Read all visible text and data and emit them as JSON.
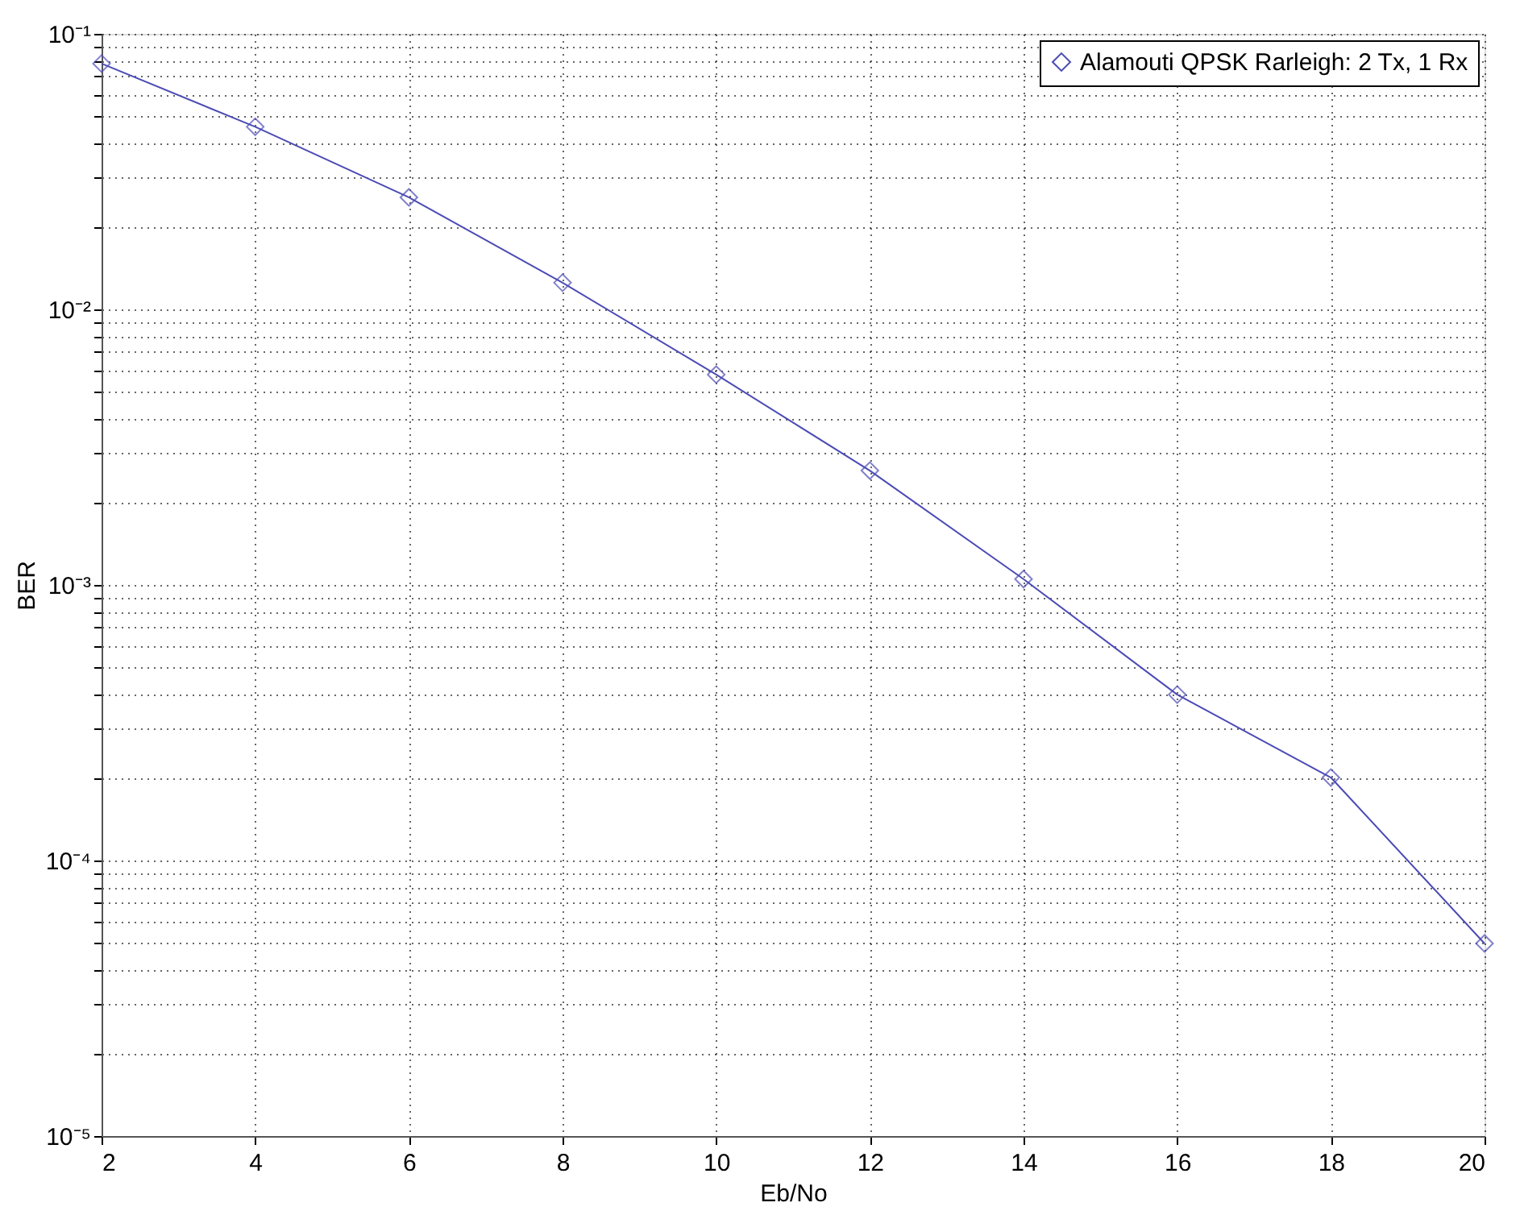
{
  "chart_data": {
    "type": "line",
    "xlabel": "Eb/No",
    "ylabel": "BER",
    "x": [
      2,
      4,
      6,
      8,
      10,
      12,
      14,
      16,
      18,
      20
    ],
    "series": [
      {
        "name": "Alamouti QPSK Rarleigh: 2 Tx, 1 Rx",
        "color": "#4b4bb5",
        "values": [
          0.078,
          0.046,
          0.0255,
          0.0125,
          0.0058,
          0.0026,
          0.00105,
          0.0004,
          0.0002,
          5e-05
        ]
      }
    ],
    "log": "y",
    "xlim": [
      2,
      20
    ],
    "xticks": [
      2,
      4,
      6,
      8,
      10,
      12,
      14,
      16,
      18,
      20
    ],
    "ylim": [
      1e-05,
      0.1
    ],
    "yticks": [
      {
        "value": 1e-05,
        "label": "10⁻⁵"
      },
      {
        "value": 2e-05,
        "label": null
      },
      {
        "value": 3e-05,
        "label": null
      },
      {
        "value": 4e-05,
        "label": null
      },
      {
        "value": 5e-05,
        "label": null
      },
      {
        "value": 6e-05,
        "label": null
      },
      {
        "value": 7e-05,
        "label": null
      },
      {
        "value": 8e-05,
        "label": null
      },
      {
        "value": 9e-05,
        "label": null
      },
      {
        "value": 0.0001,
        "label": "10⁻⁴"
      },
      {
        "value": 0.0002,
        "label": null
      },
      {
        "value": 0.0003,
        "label": null
      },
      {
        "value": 0.0004,
        "label": null
      },
      {
        "value": 0.0005,
        "label": null
      },
      {
        "value": 0.0006,
        "label": null
      },
      {
        "value": 0.0007,
        "label": null
      },
      {
        "value": 0.0008,
        "label": null
      },
      {
        "value": 0.0009,
        "label": null
      },
      {
        "value": 0.001,
        "label": "10⁻³"
      },
      {
        "value": 0.002,
        "label": null
      },
      {
        "value": 0.003,
        "label": null
      },
      {
        "value": 0.004,
        "label": null
      },
      {
        "value": 0.005,
        "label": null
      },
      {
        "value": 0.006,
        "label": null
      },
      {
        "value": 0.007,
        "label": null
      },
      {
        "value": 0.008,
        "label": null
      },
      {
        "value": 0.009,
        "label": null
      },
      {
        "value": 0.01,
        "label": "10⁻²"
      },
      {
        "value": 0.02,
        "label": null
      },
      {
        "value": 0.03,
        "label": null
      },
      {
        "value": 0.04,
        "label": null
      },
      {
        "value": 0.05,
        "label": null
      },
      {
        "value": 0.06,
        "label": null
      },
      {
        "value": 0.07,
        "label": null
      },
      {
        "value": 0.08,
        "label": null
      },
      {
        "value": 0.09,
        "label": null
      },
      {
        "value": 0.1,
        "label": "10⁻¹"
      }
    ],
    "grid": true,
    "legend": "top right",
    "marker": "diamond",
    "line_style": "solid"
  }
}
